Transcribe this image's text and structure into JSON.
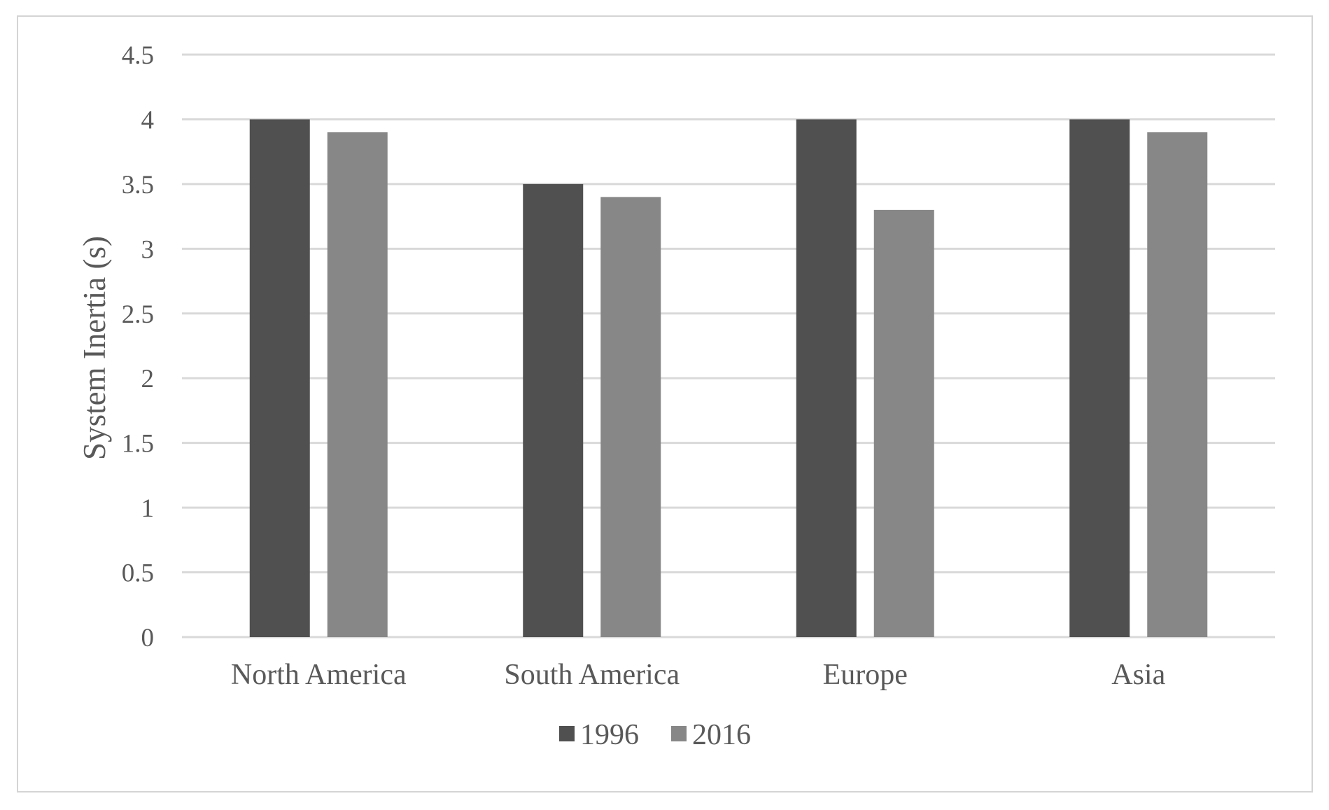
{
  "chart_data": {
    "type": "bar",
    "categories": [
      "North America",
      "South America",
      "Europe",
      "Asia"
    ],
    "series": [
      {
        "name": "1996",
        "values": [
          4.0,
          3.5,
          4.0,
          4.0
        ],
        "color": "#505050"
      },
      {
        "name": "2016",
        "values": [
          3.9,
          3.4,
          3.3,
          3.9
        ],
        "color": "#878787"
      }
    ],
    "title": "",
    "xlabel": "",
    "ylabel": "System Inertia (s)",
    "ylim": [
      0,
      4.5
    ],
    "yticks": [
      "0",
      "0.5",
      "1",
      "1.5",
      "2",
      "2.5",
      "3",
      "3.5",
      "4",
      "4.5"
    ],
    "grid": true,
    "legend_position": "bottom-center",
    "gridline_color": "#d9d9d9"
  }
}
